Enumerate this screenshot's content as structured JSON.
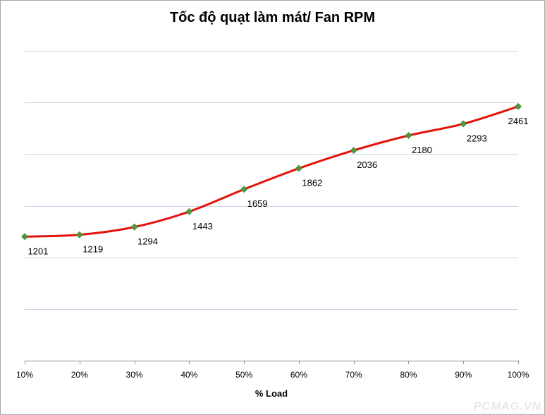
{
  "chart_data": {
    "type": "line",
    "title": "Tốc độ quạt làm mát/ Fan RPM",
    "xlabel": "% Load",
    "ylabel": "",
    "categories": [
      "10%",
      "20%",
      "30%",
      "40%",
      "50%",
      "60%",
      "70%",
      "80%",
      "90%",
      "100%"
    ],
    "series": [
      {
        "name": "Fan RPM",
        "values": [
          1201,
          1219,
          1294,
          1443,
          1659,
          1862,
          2036,
          2180,
          2293,
          2461
        ],
        "line_color": "#e3120b",
        "marker_color": "#4e9a3c"
      }
    ],
    "ylim": [
      0,
      3000
    ],
    "y_gridlines": [
      500,
      1000,
      1500,
      2000,
      2500,
      3000
    ],
    "grid": true,
    "legend": "none"
  },
  "watermark": "PCMAG.VN"
}
